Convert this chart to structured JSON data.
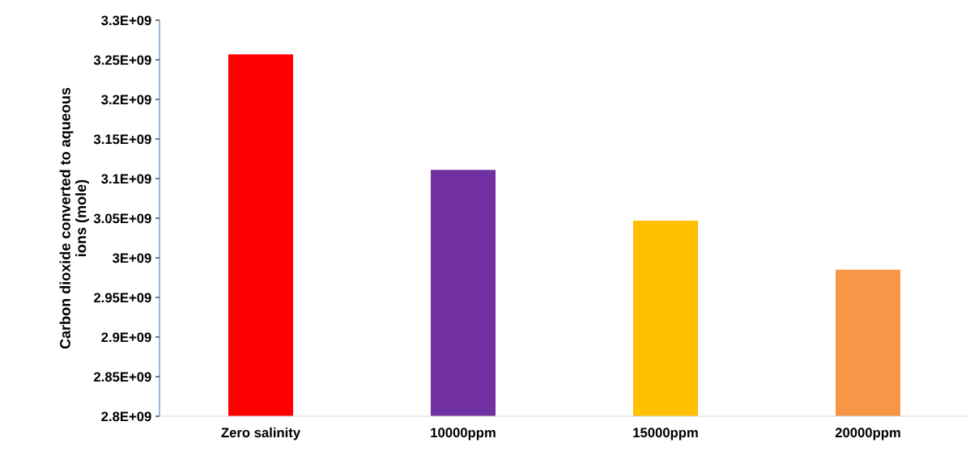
{
  "chart_data": {
    "type": "bar",
    "ylabel": "Carbon dioxide converted to aqueous\nions (mole)",
    "categories": [
      "Zero salinity",
      "10000ppm",
      "15000ppm",
      "20000ppm"
    ],
    "values": [
      3257000000.0,
      3111000000.0,
      3047000000.0,
      2985000000.0
    ],
    "colors": [
      "#ff0000",
      "#7030a0",
      "#ffc000",
      "#f79646"
    ],
    "ylim": [
      2800000000.0,
      3300000000.0
    ],
    "yticks": [
      {
        "value": 2800000000.0,
        "label": "2.8E+09"
      },
      {
        "value": 2850000000.0,
        "label": "2.85E+09"
      },
      {
        "value": 2900000000.0,
        "label": "2.9E+09"
      },
      {
        "value": 2950000000.0,
        "label": "2.95E+09"
      },
      {
        "value": 3000000000.0,
        "label": "3E+09"
      },
      {
        "value": 3050000000.0,
        "label": "3.05E+09"
      },
      {
        "value": 3100000000.0,
        "label": "3.1E+09"
      },
      {
        "value": 3150000000.0,
        "label": "3.15E+09"
      },
      {
        "value": 3200000000.0,
        "label": "3.2E+09"
      },
      {
        "value": 3250000000.0,
        "label": "3.25E+09"
      },
      {
        "value": 3300000000.0,
        "label": "3.3E+09"
      }
    ],
    "grid": false,
    "legend": false
  }
}
